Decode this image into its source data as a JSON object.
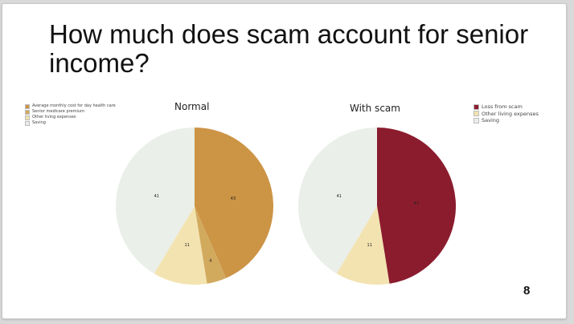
{
  "slide": {
    "title": "How much does scam account for senior income?",
    "page_number": "8"
  },
  "chart_data": [
    {
      "type": "pie",
      "title": "Normal",
      "legend_position": "top-left",
      "slices": [
        {
          "label": "Average monthly cost for day health care",
          "value": 43,
          "color": "#cc9445"
        },
        {
          "label": "Senior medicare premium",
          "value": 4,
          "color": "#d2aa5e"
        },
        {
          "label": "Other living expenses",
          "value": 11,
          "color": "#f3e3b0"
        },
        {
          "label": "Saving",
          "value": 41,
          "color": "#eaefe9"
        }
      ]
    },
    {
      "type": "pie",
      "title": "With scam",
      "legend_position": "top-right",
      "slices": [
        {
          "label": "Loss from scam",
          "value": 47,
          "color": "#8b1c2e"
        },
        {
          "label": "Other living expenses",
          "value": 11,
          "color": "#f3e3b0"
        },
        {
          "label": "Saving",
          "value": 41,
          "color": "#eaefe9"
        }
      ]
    }
  ]
}
